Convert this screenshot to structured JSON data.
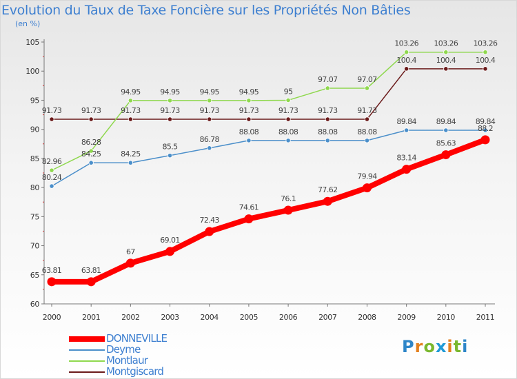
{
  "title": "Evolution du Taux de Taxe Foncière sur les Propriétés Non Bâties",
  "unit_label": "(en %)",
  "logo_text": "Proxiti",
  "colors": {
    "title": "#3d7fd0",
    "DONNEVILLE": "#ff0000",
    "Deyme": "#4b8fca",
    "Montlaur": "#8fd84e",
    "Montgiscard": "#6b1b1b"
  },
  "chart_data": {
    "type": "line",
    "title": "Evolution du Taux de Taxe Foncière sur les Propriétés Non Bâties",
    "ylabel": "(en %)",
    "xlabel": "",
    "ylim": [
      60,
      105
    ],
    "yticks": [
      60,
      65,
      70,
      75,
      80,
      85,
      90,
      95,
      100,
      105
    ],
    "categories": [
      "2000",
      "2001",
      "2002",
      "2003",
      "2004",
      "2005",
      "2006",
      "2007",
      "2008",
      "2009",
      "2010",
      "2011"
    ],
    "grid": false,
    "legend_position": "bottom-left",
    "series": [
      {
        "name": "Montgiscard",
        "color": "#6b1b1b",
        "values": [
          91.73,
          91.73,
          91.73,
          91.73,
          91.73,
          91.73,
          91.73,
          91.73,
          91.73,
          100.4,
          100.4,
          100.4
        ],
        "labels": [
          "91.73",
          "91.73",
          "91.73",
          "91.73",
          "91.73",
          "91.73",
          "91.73",
          "91.73",
          "91.73",
          "100.4",
          "100.4",
          "100.4"
        ]
      },
      {
        "name": "Montlaur",
        "color": "#8fd84e",
        "values": [
          82.96,
          86.28,
          94.95,
          94.95,
          94.95,
          94.95,
          95,
          97.07,
          97.07,
          103.26,
          103.26,
          103.26
        ],
        "labels": [
          "82.96",
          "86.28",
          "94.95",
          "94.95",
          "94.95",
          "94.95",
          "95",
          "97.07",
          "97.07",
          "103.26",
          "103.26",
          "103.26"
        ]
      },
      {
        "name": "Deyme",
        "color": "#4b8fca",
        "values": [
          80.24,
          84.25,
          84.25,
          85.5,
          86.78,
          88.08,
          88.08,
          88.08,
          88.08,
          89.84,
          89.84,
          89.84
        ],
        "labels": [
          "80.24",
          "84.25",
          "84.25",
          "85.5",
          "86.78",
          "88.08",
          "88.08",
          "88.08",
          "88.08",
          "89.84",
          "89.84",
          "89.84"
        ]
      },
      {
        "name": "DONNEVILLE",
        "color": "#ff0000",
        "values": [
          63.81,
          63.81,
          67,
          69.01,
          72.43,
          74.61,
          76.1,
          77.62,
          79.94,
          83.14,
          85.63,
          88.2
        ],
        "labels": [
          "63.81",
          "63.81",
          "67",
          "69.01",
          "72.43",
          "74.61",
          "76.1",
          "77.62",
          "79.94",
          "83.14",
          "85.63",
          "88.2"
        ]
      }
    ]
  },
  "legend": [
    {
      "name": "DONNEVILLE",
      "color": "#ff0000"
    },
    {
      "name": "Deyme",
      "color": "#4b8fca"
    },
    {
      "name": "Montlaur",
      "color": "#8fd84e"
    },
    {
      "name": "Montgiscard",
      "color": "#6b1b1b"
    }
  ]
}
